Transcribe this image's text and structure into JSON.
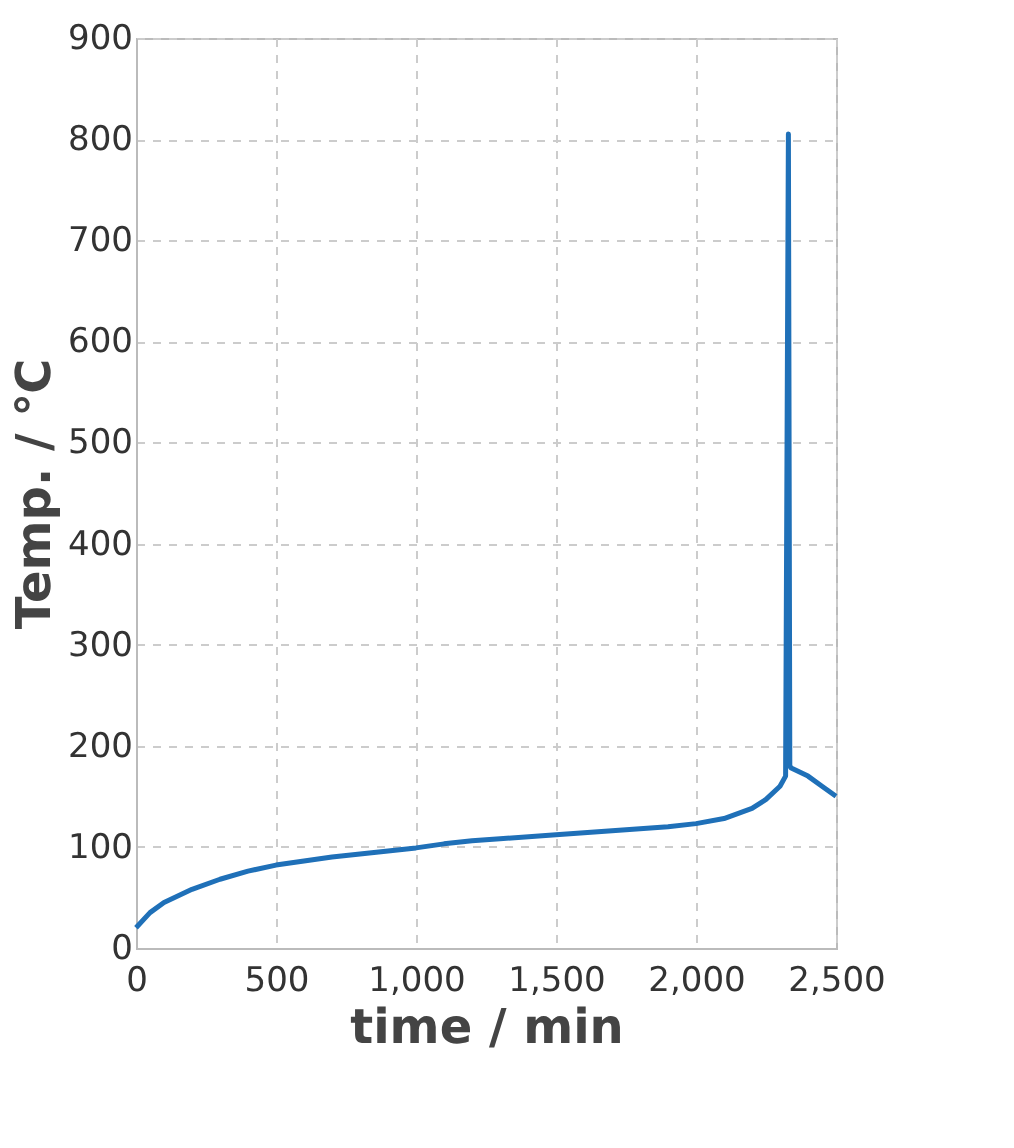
{
  "chart_data": {
    "type": "line",
    "xlabel": "time  / min",
    "ylabel": "Temp. / ℃",
    "x": [
      0,
      50,
      100,
      200,
      300,
      400,
      500,
      600,
      700,
      800,
      900,
      1000,
      1100,
      1200,
      1300,
      1500,
      1700,
      1900,
      2000,
      2100,
      2200,
      2250,
      2300,
      2320,
      2330,
      2335,
      2340,
      2400,
      2450,
      2500
    ],
    "series": [
      {
        "color": "#1f70b8",
        "values": [
          20,
          35,
          45,
          58,
          68,
          76,
          82,
          86,
          90,
          93,
          96,
          99,
          103,
          106,
          108,
          112,
          116,
          120,
          123,
          128,
          138,
          147,
          160,
          170,
          805,
          180,
          178,
          170,
          160,
          150
        ]
      }
    ],
    "xlim": [
      0,
      2500
    ],
    "xticks": [
      {
        "value": 0,
        "label": "0"
      },
      {
        "value": 500,
        "label": "500"
      },
      {
        "value": 1000,
        "label": "1,000"
      },
      {
        "value": 1500,
        "label": "1,500"
      },
      {
        "value": 2000,
        "label": "2,000"
      },
      {
        "value": 2500,
        "label": "2,500"
      }
    ],
    "ylim": [
      0,
      900
    ],
    "yticks": [
      0,
      100,
      200,
      300,
      400,
      500,
      600,
      700,
      800,
      900
    ],
    "grid": true,
    "line_style": "solid",
    "marker": "none"
  }
}
